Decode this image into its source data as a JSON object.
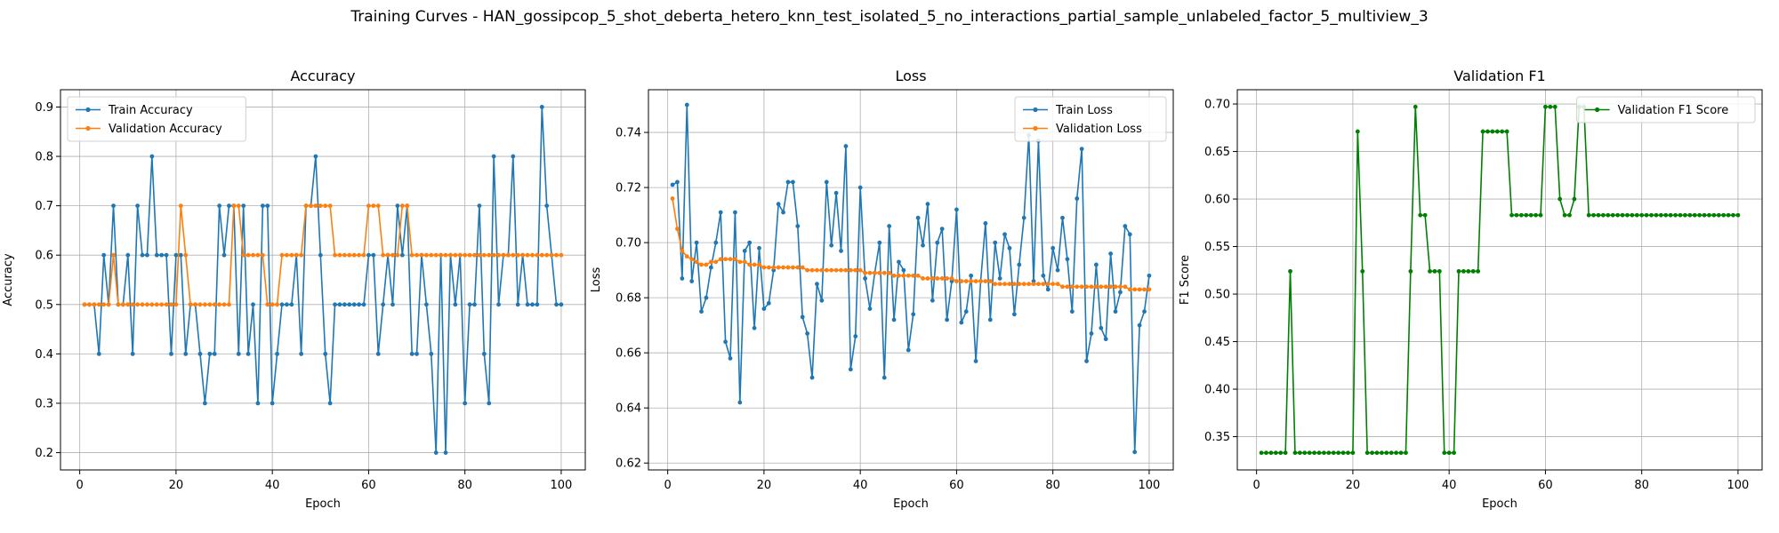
{
  "figure": {
    "title": "Training Curves - HAN_gossipcop_5_shot_deberta_hetero_knn_test_isolated_5_no_interactions_partial_sample_unlabeled_factor_5_multiview_3"
  },
  "colors": {
    "blue": "#1f77b4",
    "orange": "#ff7f0e",
    "green": "#008000",
    "grid": "#b0b0b0"
  },
  "chart_data": [
    {
      "type": "line",
      "title": "Accuracy",
      "xlabel": "Epoch",
      "ylabel": "Accuracy",
      "xlim": [
        -4,
        105
      ],
      "ylim": [
        0.165,
        0.935
      ],
      "xticks": [
        0,
        20,
        40,
        60,
        80,
        100
      ],
      "yticks": [
        0.2,
        0.3,
        0.4,
        0.5,
        0.6,
        0.7,
        0.8,
        0.9
      ],
      "ytick_decimals": 1,
      "grid": true,
      "legend": "upper left",
      "x_start": 1,
      "series": [
        {
          "name": "Train Accuracy",
          "color": "#1f77b4",
          "values": [
            0.5,
            0.5,
            0.5,
            0.4,
            0.6,
            0.5,
            0.7,
            0.5,
            0.5,
            0.6,
            0.4,
            0.7,
            0.6,
            0.6,
            0.8,
            0.6,
            0.6,
            0.6,
            0.4,
            0.6,
            0.6,
            0.4,
            0.5,
            0.5,
            0.4,
            0.3,
            0.4,
            0.4,
            0.7,
            0.6,
            0.7,
            0.7,
            0.4,
            0.7,
            0.4,
            0.5,
            0.3,
            0.7,
            0.7,
            0.3,
            0.4,
            0.5,
            0.5,
            0.5,
            0.6,
            0.4,
            0.7,
            0.7,
            0.8,
            0.6,
            0.4,
            0.3,
            0.5,
            0.5,
            0.5,
            0.5,
            0.5,
            0.5,
            0.5,
            0.6,
            0.6,
            0.4,
            0.5,
            0.6,
            0.5,
            0.7,
            0.6,
            0.7,
            0.4,
            0.4,
            0.6,
            0.5,
            0.4,
            0.2,
            0.6,
            0.2,
            0.6,
            0.5,
            0.6,
            0.3,
            0.5,
            0.5,
            0.7,
            0.4,
            0.3,
            0.8,
            0.5,
            0.6,
            0.6,
            0.8,
            0.5,
            0.6,
            0.5,
            0.5,
            0.5,
            0.9,
            0.7,
            0.6,
            0.5,
            0.5
          ]
        },
        {
          "name": "Validation Accuracy",
          "color": "#ff7f0e",
          "values": [
            0.5,
            0.5,
            0.5,
            0.5,
            0.5,
            0.5,
            0.6,
            0.5,
            0.5,
            0.5,
            0.5,
            0.5,
            0.5,
            0.5,
            0.5,
            0.5,
            0.5,
            0.5,
            0.5,
            0.5,
            0.7,
            0.6,
            0.5,
            0.5,
            0.5,
            0.5,
            0.5,
            0.5,
            0.5,
            0.5,
            0.5,
            0.7,
            0.7,
            0.6,
            0.6,
            0.6,
            0.6,
            0.6,
            0.5,
            0.5,
            0.5,
            0.6,
            0.6,
            0.6,
            0.6,
            0.6,
            0.7,
            0.7,
            0.7,
            0.7,
            0.7,
            0.7,
            0.6,
            0.6,
            0.6,
            0.6,
            0.6,
            0.6,
            0.6,
            0.7,
            0.7,
            0.7,
            0.6,
            0.6,
            0.6,
            0.6,
            0.7,
            0.7,
            0.6,
            0.6,
            0.6,
            0.6,
            0.6,
            0.6,
            0.6,
            0.6,
            0.6,
            0.6,
            0.6,
            0.6,
            0.6,
            0.6,
            0.6,
            0.6,
            0.6,
            0.6,
            0.6,
            0.6,
            0.6,
            0.6,
            0.6,
            0.6,
            0.6,
            0.6,
            0.6,
            0.6,
            0.6,
            0.6,
            0.6,
            0.6
          ]
        }
      ]
    },
    {
      "type": "line",
      "title": "Loss",
      "xlabel": "Epoch",
      "ylabel": "Loss",
      "xlim": [
        -4,
        105
      ],
      "ylim": [
        0.6175,
        0.7555
      ],
      "xticks": [
        0,
        20,
        40,
        60,
        80,
        100
      ],
      "yticks": [
        0.62,
        0.64,
        0.66,
        0.68,
        0.7,
        0.72,
        0.74
      ],
      "ytick_decimals": 2,
      "grid": true,
      "legend": "upper right",
      "x_start": 1,
      "series": [
        {
          "name": "Train Loss",
          "color": "#1f77b4",
          "values": [
            0.721,
            0.722,
            0.687,
            0.75,
            0.686,
            0.7,
            0.675,
            0.68,
            0.691,
            0.7,
            0.711,
            0.664,
            0.658,
            0.711,
            0.642,
            0.697,
            0.7,
            0.669,
            0.698,
            0.676,
            0.678,
            0.69,
            0.714,
            0.711,
            0.722,
            0.722,
            0.706,
            0.673,
            0.667,
            0.651,
            0.685,
            0.679,
            0.722,
            0.699,
            0.718,
            0.697,
            0.735,
            0.654,
            0.666,
            0.72,
            0.687,
            0.676,
            0.689,
            0.7,
            0.651,
            0.706,
            0.672,
            0.693,
            0.69,
            0.661,
            0.674,
            0.709,
            0.699,
            0.714,
            0.679,
            0.7,
            0.705,
            0.672,
            0.686,
            0.712,
            0.671,
            0.675,
            0.688,
            0.657,
            0.686,
            0.707,
            0.672,
            0.7,
            0.687,
            0.703,
            0.698,
            0.674,
            0.692,
            0.709,
            0.739,
            0.686,
            0.737,
            0.688,
            0.683,
            0.698,
            0.69,
            0.709,
            0.694,
            0.675,
            0.716,
            0.734,
            0.657,
            0.667,
            0.692,
            0.669,
            0.665,
            0.696,
            0.675,
            0.682,
            0.706,
            0.703,
            0.624,
            0.67,
            0.675,
            0.688
          ]
        },
        {
          "name": "Validation Loss",
          "color": "#ff7f0e",
          "values": [
            0.716,
            0.705,
            0.697,
            0.695,
            0.694,
            0.693,
            0.692,
            0.692,
            0.693,
            0.693,
            0.694,
            0.694,
            0.694,
            0.694,
            0.693,
            0.693,
            0.692,
            0.692,
            0.692,
            0.691,
            0.691,
            0.691,
            0.691,
            0.691,
            0.691,
            0.691,
            0.691,
            0.691,
            0.69,
            0.69,
            0.69,
            0.69,
            0.69,
            0.69,
            0.69,
            0.69,
            0.69,
            0.69,
            0.69,
            0.69,
            0.689,
            0.689,
            0.689,
            0.689,
            0.689,
            0.689,
            0.688,
            0.688,
            0.688,
            0.688,
            0.688,
            0.688,
            0.687,
            0.687,
            0.687,
            0.687,
            0.687,
            0.687,
            0.687,
            0.686,
            0.686,
            0.686,
            0.686,
            0.686,
            0.686,
            0.686,
            0.686,
            0.685,
            0.685,
            0.685,
            0.685,
            0.685,
            0.685,
            0.685,
            0.685,
            0.685,
            0.685,
            0.685,
            0.685,
            0.685,
            0.685,
            0.684,
            0.684,
            0.684,
            0.684,
            0.684,
            0.684,
            0.684,
            0.684,
            0.684,
            0.684,
            0.684,
            0.684,
            0.684,
            0.684,
            0.683,
            0.683,
            0.683,
            0.683,
            0.683
          ]
        }
      ]
    },
    {
      "type": "line",
      "title": "Validation F1",
      "xlabel": "Epoch",
      "ylabel": "F1 Score",
      "xlim": [
        -4,
        105
      ],
      "ylim": [
        0.315,
        0.715
      ],
      "xticks": [
        0,
        20,
        40,
        60,
        80,
        100
      ],
      "yticks": [
        0.35,
        0.4,
        0.45,
        0.5,
        0.55,
        0.6,
        0.65,
        0.7
      ],
      "ytick_decimals": 2,
      "grid": true,
      "legend": "upper right",
      "x_start": 1,
      "series": [
        {
          "name": "Validation F1 Score",
          "color": "#008000",
          "values": [
            0.333,
            0.333,
            0.333,
            0.333,
            0.333,
            0.333,
            0.524,
            0.333,
            0.333,
            0.333,
            0.333,
            0.333,
            0.333,
            0.333,
            0.333,
            0.333,
            0.333,
            0.333,
            0.333,
            0.333,
            0.671,
            0.524,
            0.333,
            0.333,
            0.333,
            0.333,
            0.333,
            0.333,
            0.333,
            0.333,
            0.333,
            0.524,
            0.697,
            0.583,
            0.583,
            0.524,
            0.524,
            0.524,
            0.333,
            0.333,
            0.333,
            0.524,
            0.524,
            0.524,
            0.524,
            0.524,
            0.671,
            0.671,
            0.671,
            0.671,
            0.671,
            0.671,
            0.583,
            0.583,
            0.583,
            0.583,
            0.583,
            0.583,
            0.583,
            0.697,
            0.697,
            0.697,
            0.6,
            0.583,
            0.583,
            0.6,
            0.697,
            0.697,
            0.583,
            0.583,
            0.583,
            0.583,
            0.583,
            0.583,
            0.583,
            0.583,
            0.583,
            0.583,
            0.583,
            0.583,
            0.583,
            0.583,
            0.583,
            0.583,
            0.583,
            0.583,
            0.583,
            0.583,
            0.583,
            0.583,
            0.583,
            0.583,
            0.583,
            0.583,
            0.583,
            0.583,
            0.583,
            0.583,
            0.583,
            0.583
          ]
        }
      ]
    }
  ]
}
